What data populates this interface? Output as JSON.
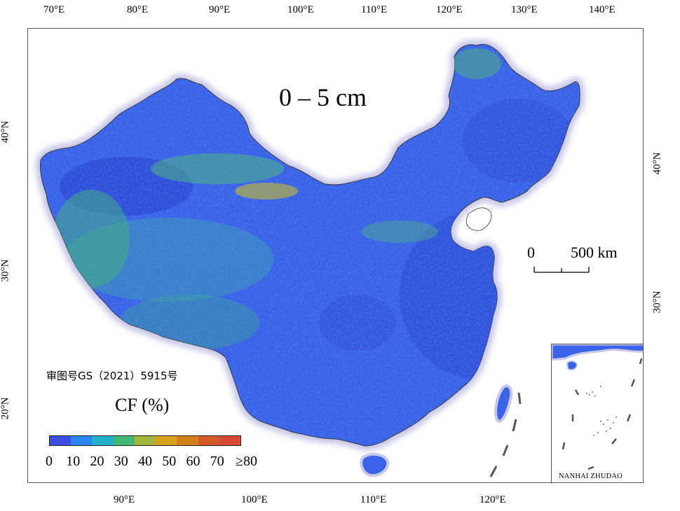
{
  "map": {
    "title": "0 – 5 cm",
    "top_lon_labels": [
      "70°E",
      "80°E",
      "90°E",
      "100°E",
      "110°E",
      "120°E",
      "130°E",
      "140°E"
    ],
    "bottom_lon_labels": [
      "90°E",
      "100°E",
      "110°E",
      "120°E"
    ],
    "left_lat_labels": [
      "40°N",
      "30°N",
      "20°N"
    ],
    "right_lat_labels": [
      "40°N",
      "30°N"
    ],
    "scale_bar": {
      "start_label": "0",
      "end_label": "500 km"
    },
    "review_number": "审图号GS（2021）5915号",
    "inset_label": "NANHAI ZHUDAO"
  },
  "legend": {
    "title": "CF (%)",
    "tick_labels": [
      "0",
      "10",
      "20",
      "30",
      "40",
      "50",
      "60",
      "70",
      "≥80"
    ],
    "colors": [
      "#3b4fe0",
      "#2c86ee",
      "#22b1c7",
      "#3fb874",
      "#a3b63a",
      "#d9a21c",
      "#d3801c",
      "#d65a27",
      "#d94a36"
    ]
  },
  "colors": {
    "land_base": "#3a63e8",
    "land_deep": "#2f49d6",
    "land_green": "#3fae7a",
    "land_yellow": "#b8b03a",
    "halo": "#c8c8e8",
    "frame": "#555555"
  }
}
